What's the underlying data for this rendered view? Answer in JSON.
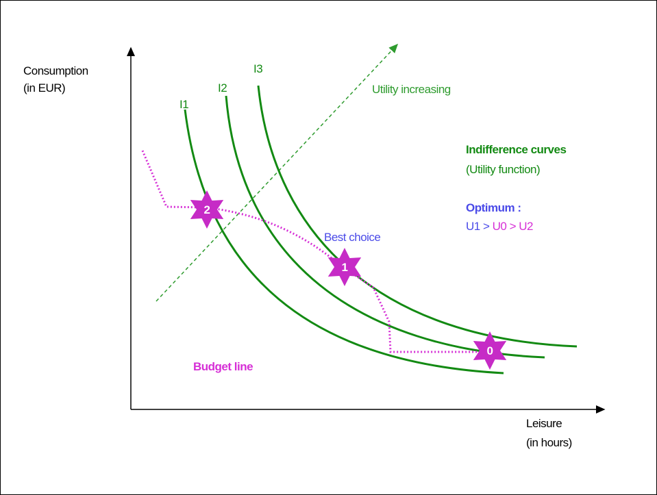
{
  "axes": {
    "y_label": [
      "Consumption",
      "(in EUR)"
    ],
    "x_label": [
      "Leisure",
      "(in hours)"
    ]
  },
  "curves": [
    {
      "label": "I1"
    },
    {
      "label": "I2"
    },
    {
      "label": "I3"
    }
  ],
  "arrow_label": "Utility increasing",
  "legend": {
    "title": "Indifference curves",
    "subtitle": "(Utility function)",
    "optimum_title": "Optimum :",
    "optimum_parts": [
      "U1",
      ">",
      "U0",
      ">",
      "U2"
    ]
  },
  "annotations": {
    "best_choice": "Best choice",
    "budget_line": "Budget line"
  },
  "points": [
    {
      "label": "2"
    },
    {
      "label": "1"
    },
    {
      "label": "0"
    }
  ]
}
